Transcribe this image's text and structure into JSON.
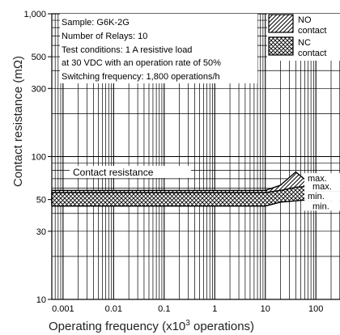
{
  "chart_data": {
    "type": "line",
    "xlabel": "Operating frequency (x10",
    "xlabel_sup": "3",
    "xlabel_tail": " operations)",
    "ylabel": "Contact resistance (mΩ)",
    "xscale": "log",
    "yscale": "log",
    "xlim": [
      0.0006,
      300
    ],
    "ylim": [
      10,
      1000
    ],
    "xticks": [
      {
        "value": 0.001,
        "label": "0.001"
      },
      {
        "value": 0.01,
        "label": "0.01"
      },
      {
        "value": 0.1,
        "label": "0.1"
      },
      {
        "value": 1,
        "label": "1"
      },
      {
        "value": 10,
        "label": "10"
      },
      {
        "value": 100,
        "label": "100"
      }
    ],
    "yticks": [
      {
        "value": 10,
        "label": "10"
      },
      {
        "value": 30,
        "label": "30"
      },
      {
        "value": 50,
        "label": "50"
      },
      {
        "value": 100,
        "label": "100"
      },
      {
        "value": 300,
        "label": "300"
      },
      {
        "value": 500,
        "label": "500"
      },
      {
        "value": 1000,
        "label": "1,000"
      }
    ],
    "grid": true,
    "annotations": [
      "Sample: G6K-2G",
      "Number of Relays: 10",
      "Test conditions: 1 A resistive load",
      "at 30 VDC with an operation rate of 50%",
      "Switching frequency: 1,800 operations/h"
    ],
    "series_label": "Contact resistance",
    "legend": {
      "position": "top-right",
      "entries": [
        {
          "name": "NO contact",
          "line1": "NO",
          "line2": "contact",
          "pattern": "hatch"
        },
        {
          "name": "NC contact",
          "line1": "NC",
          "line2": "contact",
          "pattern": "crosshatch"
        }
      ]
    },
    "series": [
      {
        "name": "NO contact",
        "x": [
          0.0006,
          0.001,
          0.01,
          0.1,
          1,
          10,
          20,
          40,
          80,
          120,
          300
        ],
        "max": [
          58,
          58,
          58,
          58,
          58,
          58,
          63,
          78,
          64,
          68,
          68
        ],
        "min": [
          47,
          47,
          47,
          47,
          47,
          47,
          50,
          51,
          52,
          52,
          52
        ]
      },
      {
        "name": "NC contact",
        "x": [
          0.0006,
          0.001,
          0.01,
          0.1,
          1,
          10,
          20,
          40,
          80,
          120,
          300
        ],
        "max": [
          56,
          56,
          56,
          56,
          56,
          56,
          58,
          61,
          62,
          63,
          63
        ],
        "min": [
          45,
          45,
          45,
          45,
          45,
          45,
          48,
          49,
          50,
          50,
          50
        ]
      }
    ],
    "range_labels": [
      {
        "text": "max.",
        "value": 68
      },
      {
        "text": "max.",
        "value": 62
      },
      {
        "text": "min.",
        "value": 53
      },
      {
        "text": "min.",
        "value": 47
      }
    ]
  }
}
